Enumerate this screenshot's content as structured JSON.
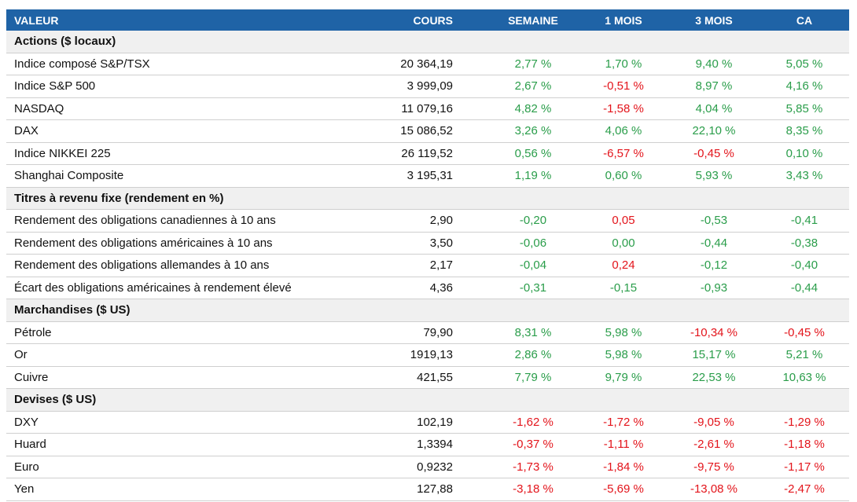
{
  "header": [
    "VALEUR",
    "COURS",
    "SEMAINE",
    "1 MOIS",
    "3 MOIS",
    "CA"
  ],
  "sections": [
    {
      "title": "Actions ($ locaux)",
      "rows": [
        {
          "cells": [
            "Indice composé S&P/TSX",
            "20 364,19",
            "2,77 %",
            "1,70 %",
            "9,40 %",
            "5,05 %"
          ],
          "colors": [
            "#2a9d4a",
            "#2a9d4a",
            "#2a9d4a",
            "#2a9d4a"
          ]
        },
        {
          "cells": [
            "Indice S&P 500",
            "3 999,09",
            "2,67 %",
            "-0,51 %",
            "8,97 %",
            "4,16 %"
          ],
          "colors": [
            "#2a9d4a",
            "#e3141b",
            "#2a9d4a",
            "#2a9d4a"
          ]
        },
        {
          "cells": [
            "NASDAQ",
            "11 079,16",
            "4,82 %",
            "-1,58 %",
            "4,04 %",
            "5,85 %"
          ],
          "colors": [
            "#2a9d4a",
            "#e3141b",
            "#2a9d4a",
            "#2a9d4a"
          ]
        },
        {
          "cells": [
            "DAX",
            "15 086,52",
            "3,26 %",
            "4,06 %",
            "22,10 %",
            "8,35 %"
          ],
          "colors": [
            "#2a9d4a",
            "#2a9d4a",
            "#2a9d4a",
            "#2a9d4a"
          ]
        },
        {
          "cells": [
            "Indice NIKKEI 225",
            "26 119,52",
            "0,56 %",
            "-6,57 %",
            "-0,45 %",
            "0,10 %"
          ],
          "colors": [
            "#2a9d4a",
            "#e3141b",
            "#e3141b",
            "#2a9d4a"
          ]
        },
        {
          "cells": [
            "Shanghai Composite",
            "3 195,31",
            "1,19 %",
            "0,60 %",
            "5,93 %",
            "3,43 %"
          ],
          "colors": [
            "#2a9d4a",
            "#2a9d4a",
            "#2a9d4a",
            "#2a9d4a"
          ]
        }
      ]
    },
    {
      "title": "Titres à revenu fixe (rendement en %)",
      "rows": [
        {
          "cells": [
            "Rendement des obligations canadiennes à 10 ans",
            "2,90",
            "-0,20",
            "0,05",
            "-0,53",
            "-0,41"
          ],
          "colors": [
            "#2a9d4a",
            "#e3141b",
            "#2a9d4a",
            "#2a9d4a"
          ]
        },
        {
          "cells": [
            "Rendement des obligations américaines à 10 ans",
            "3,50",
            "-0,06",
            "0,00",
            "-0,44",
            "-0,38"
          ],
          "colors": [
            "#2a9d4a",
            "#2a9d4a",
            "#2a9d4a",
            "#2a9d4a"
          ]
        },
        {
          "cells": [
            "Rendement des obligations allemandes à 10 ans",
            "2,17",
            "-0,04",
            "0,24",
            "-0,12",
            "-0,40"
          ],
          "colors": [
            "#2a9d4a",
            "#e3141b",
            "#2a9d4a",
            "#2a9d4a"
          ]
        },
        {
          "cells": [
            "Écart des obligations américaines à rendement élevé",
            "4,36",
            "-0,31",
            "-0,15",
            "-0,93",
            "-0,44"
          ],
          "colors": [
            "#2a9d4a",
            "#2a9d4a",
            "#2a9d4a",
            "#2a9d4a"
          ]
        }
      ]
    },
    {
      "title": "Marchandises ($ US)",
      "rows": [
        {
          "cells": [
            "Pétrole",
            "79,90",
            "8,31 %",
            "5,98 %",
            "-10,34 %",
            "-0,45 %"
          ],
          "colors": [
            "#2a9d4a",
            "#2a9d4a",
            "#e3141b",
            "#e3141b"
          ]
        },
        {
          "cells": [
            "Or",
            "1919,13",
            "2,86 %",
            "5,98 %",
            "15,17 %",
            "5,21 %"
          ],
          "colors": [
            "#2a9d4a",
            "#2a9d4a",
            "#2a9d4a",
            "#2a9d4a"
          ]
        },
        {
          "cells": [
            "Cuivre",
            "421,55",
            "7,79 %",
            "9,79 %",
            "22,53 %",
            "10,63 %"
          ],
          "colors": [
            "#2a9d4a",
            "#2a9d4a",
            "#2a9d4a",
            "#2a9d4a"
          ]
        }
      ]
    },
    {
      "title": "Devises ($ US)",
      "rows": [
        {
          "cells": [
            "DXY",
            "102,19",
            "-1,62 %",
            "-1,72 %",
            "-9,05 %",
            "-1,29 %"
          ],
          "colors": [
            "#e3141b",
            "#e3141b",
            "#e3141b",
            "#e3141b"
          ]
        },
        {
          "cells": [
            "Huard",
            "1,3394",
            "-0,37 %",
            "-1,11 %",
            "-2,61 %",
            "-1,18 %"
          ],
          "colors": [
            "#e3141b",
            "#e3141b",
            "#e3141b",
            "#e3141b"
          ]
        },
        {
          "cells": [
            "Euro",
            "0,9232",
            "-1,73 %",
            "-1,84 %",
            "-9,75 %",
            "-1,17 %"
          ],
          "colors": [
            "#e3141b",
            "#e3141b",
            "#e3141b",
            "#e3141b"
          ]
        },
        {
          "cells": [
            "Yen",
            "127,88",
            "-3,18 %",
            "-5,69 %",
            "-13,08 %",
            "-2,47 %"
          ],
          "colors": [
            "#e3141b",
            "#e3141b",
            "#e3141b",
            "#e3141b"
          ]
        }
      ]
    }
  ]
}
